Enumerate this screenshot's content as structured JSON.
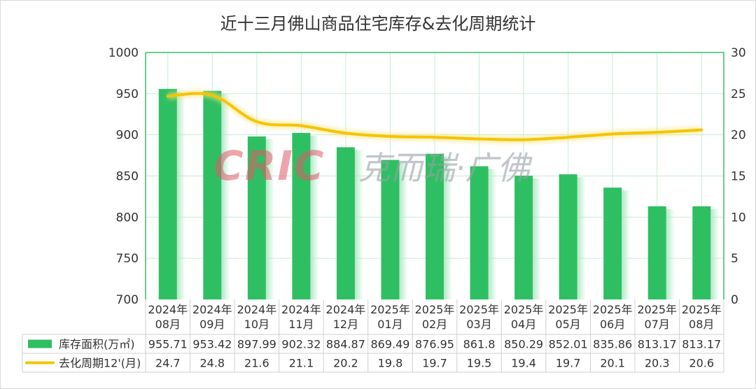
{
  "colors": {
    "bar": "#2fbf63",
    "line": "#f5c400",
    "grid": "#c8ecd3",
    "axis": "#36c167",
    "text": "#333333"
  },
  "watermark": {
    "brand": "CRIC",
    "name": "克而瑞·广佛"
  },
  "chart_data": {
    "type": "bar",
    "title": "近十三月佛山商品住宅库存&去化周期统计",
    "categories": [
      [
        "2024年",
        "08月"
      ],
      [
        "2024年",
        "09月"
      ],
      [
        "2024年",
        "10月"
      ],
      [
        "2024年",
        "11月"
      ],
      [
        "2024年",
        "12月"
      ],
      [
        "2025年",
        "01月"
      ],
      [
        "2025年",
        "02月"
      ],
      [
        "2025年",
        "03月"
      ],
      [
        "2025年",
        "04月"
      ],
      [
        "2025年",
        "05月"
      ],
      [
        "2025年",
        "06月"
      ],
      [
        "2025年",
        "07月"
      ],
      [
        "2025年",
        "08月"
      ]
    ],
    "series": [
      {
        "name": "库存面积(万㎡)",
        "kind": "bar",
        "axis": "left",
        "values": [
          955.71,
          953.42,
          897.99,
          902.32,
          884.87,
          869.49,
          876.95,
          861.8,
          850.29,
          852.01,
          835.86,
          813.17,
          813.17
        ]
      },
      {
        "name": "去化周期12'(月)",
        "kind": "line",
        "axis": "right",
        "values": [
          24.7,
          24.8,
          21.6,
          21.1,
          20.2,
          19.8,
          19.7,
          19.5,
          19.4,
          19.7,
          20.1,
          20.3,
          20.6
        ]
      }
    ],
    "ylim_left": [
      700,
      1000
    ],
    "yticks_left": [
      700,
      750,
      800,
      850,
      900,
      950,
      1000
    ],
    "ylim_right": [
      0,
      30
    ],
    "yticks_right": [
      0,
      5,
      10,
      15,
      20,
      25,
      30
    ],
    "grid": true,
    "legend": "data-table"
  }
}
